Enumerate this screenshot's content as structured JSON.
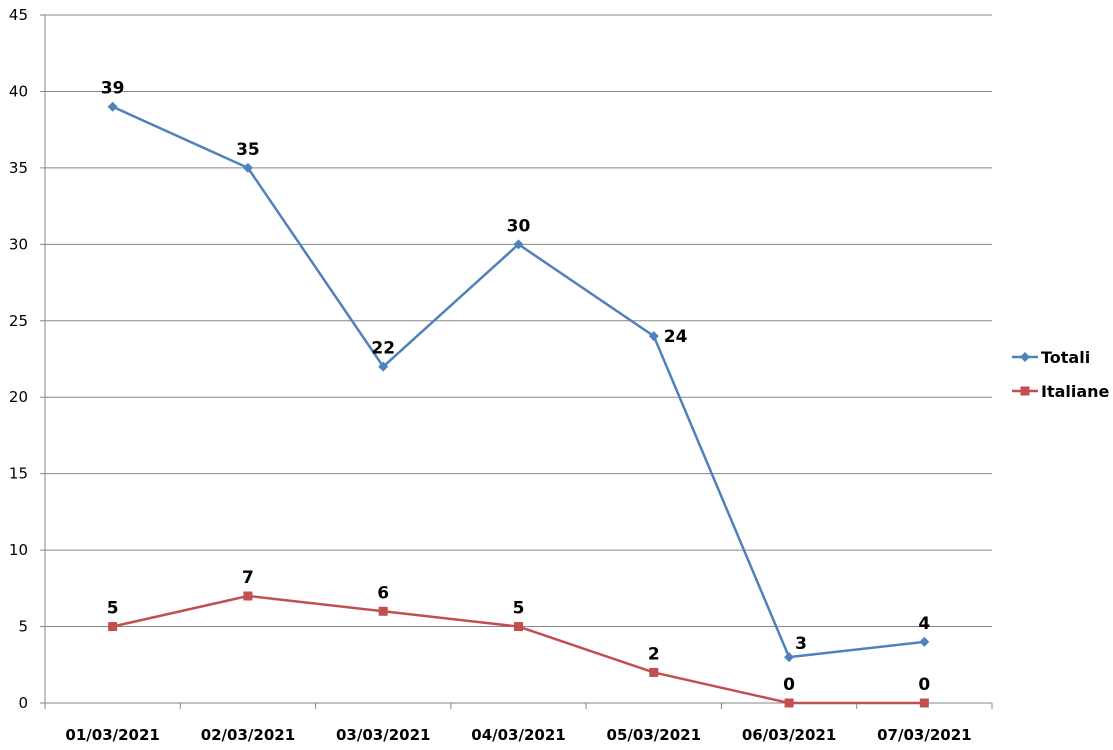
{
  "chart_data": {
    "type": "line",
    "title": "",
    "xlabel": "",
    "ylabel": "",
    "categories": [
      "01/03/2021",
      "02/03/2021",
      "03/03/2021",
      "04/03/2021",
      "05/03/2021",
      "06/03/2021",
      "07/03/2021"
    ],
    "ylim": [
      0,
      45
    ],
    "yticks": [
      0,
      5,
      10,
      15,
      20,
      25,
      30,
      35,
      40,
      45
    ],
    "grid": true,
    "legend": "right",
    "data_labels": true,
    "series": [
      {
        "name": "Totali",
        "values": [
          39,
          35,
          22,
          30,
          24,
          3,
          4
        ],
        "color": "#4f81bd",
        "marker": "diamond"
      },
      {
        "name": "Italiane",
        "values": [
          5,
          7,
          6,
          5,
          2,
          0,
          0
        ],
        "color": "#c0504d",
        "marker": "square"
      }
    ]
  }
}
